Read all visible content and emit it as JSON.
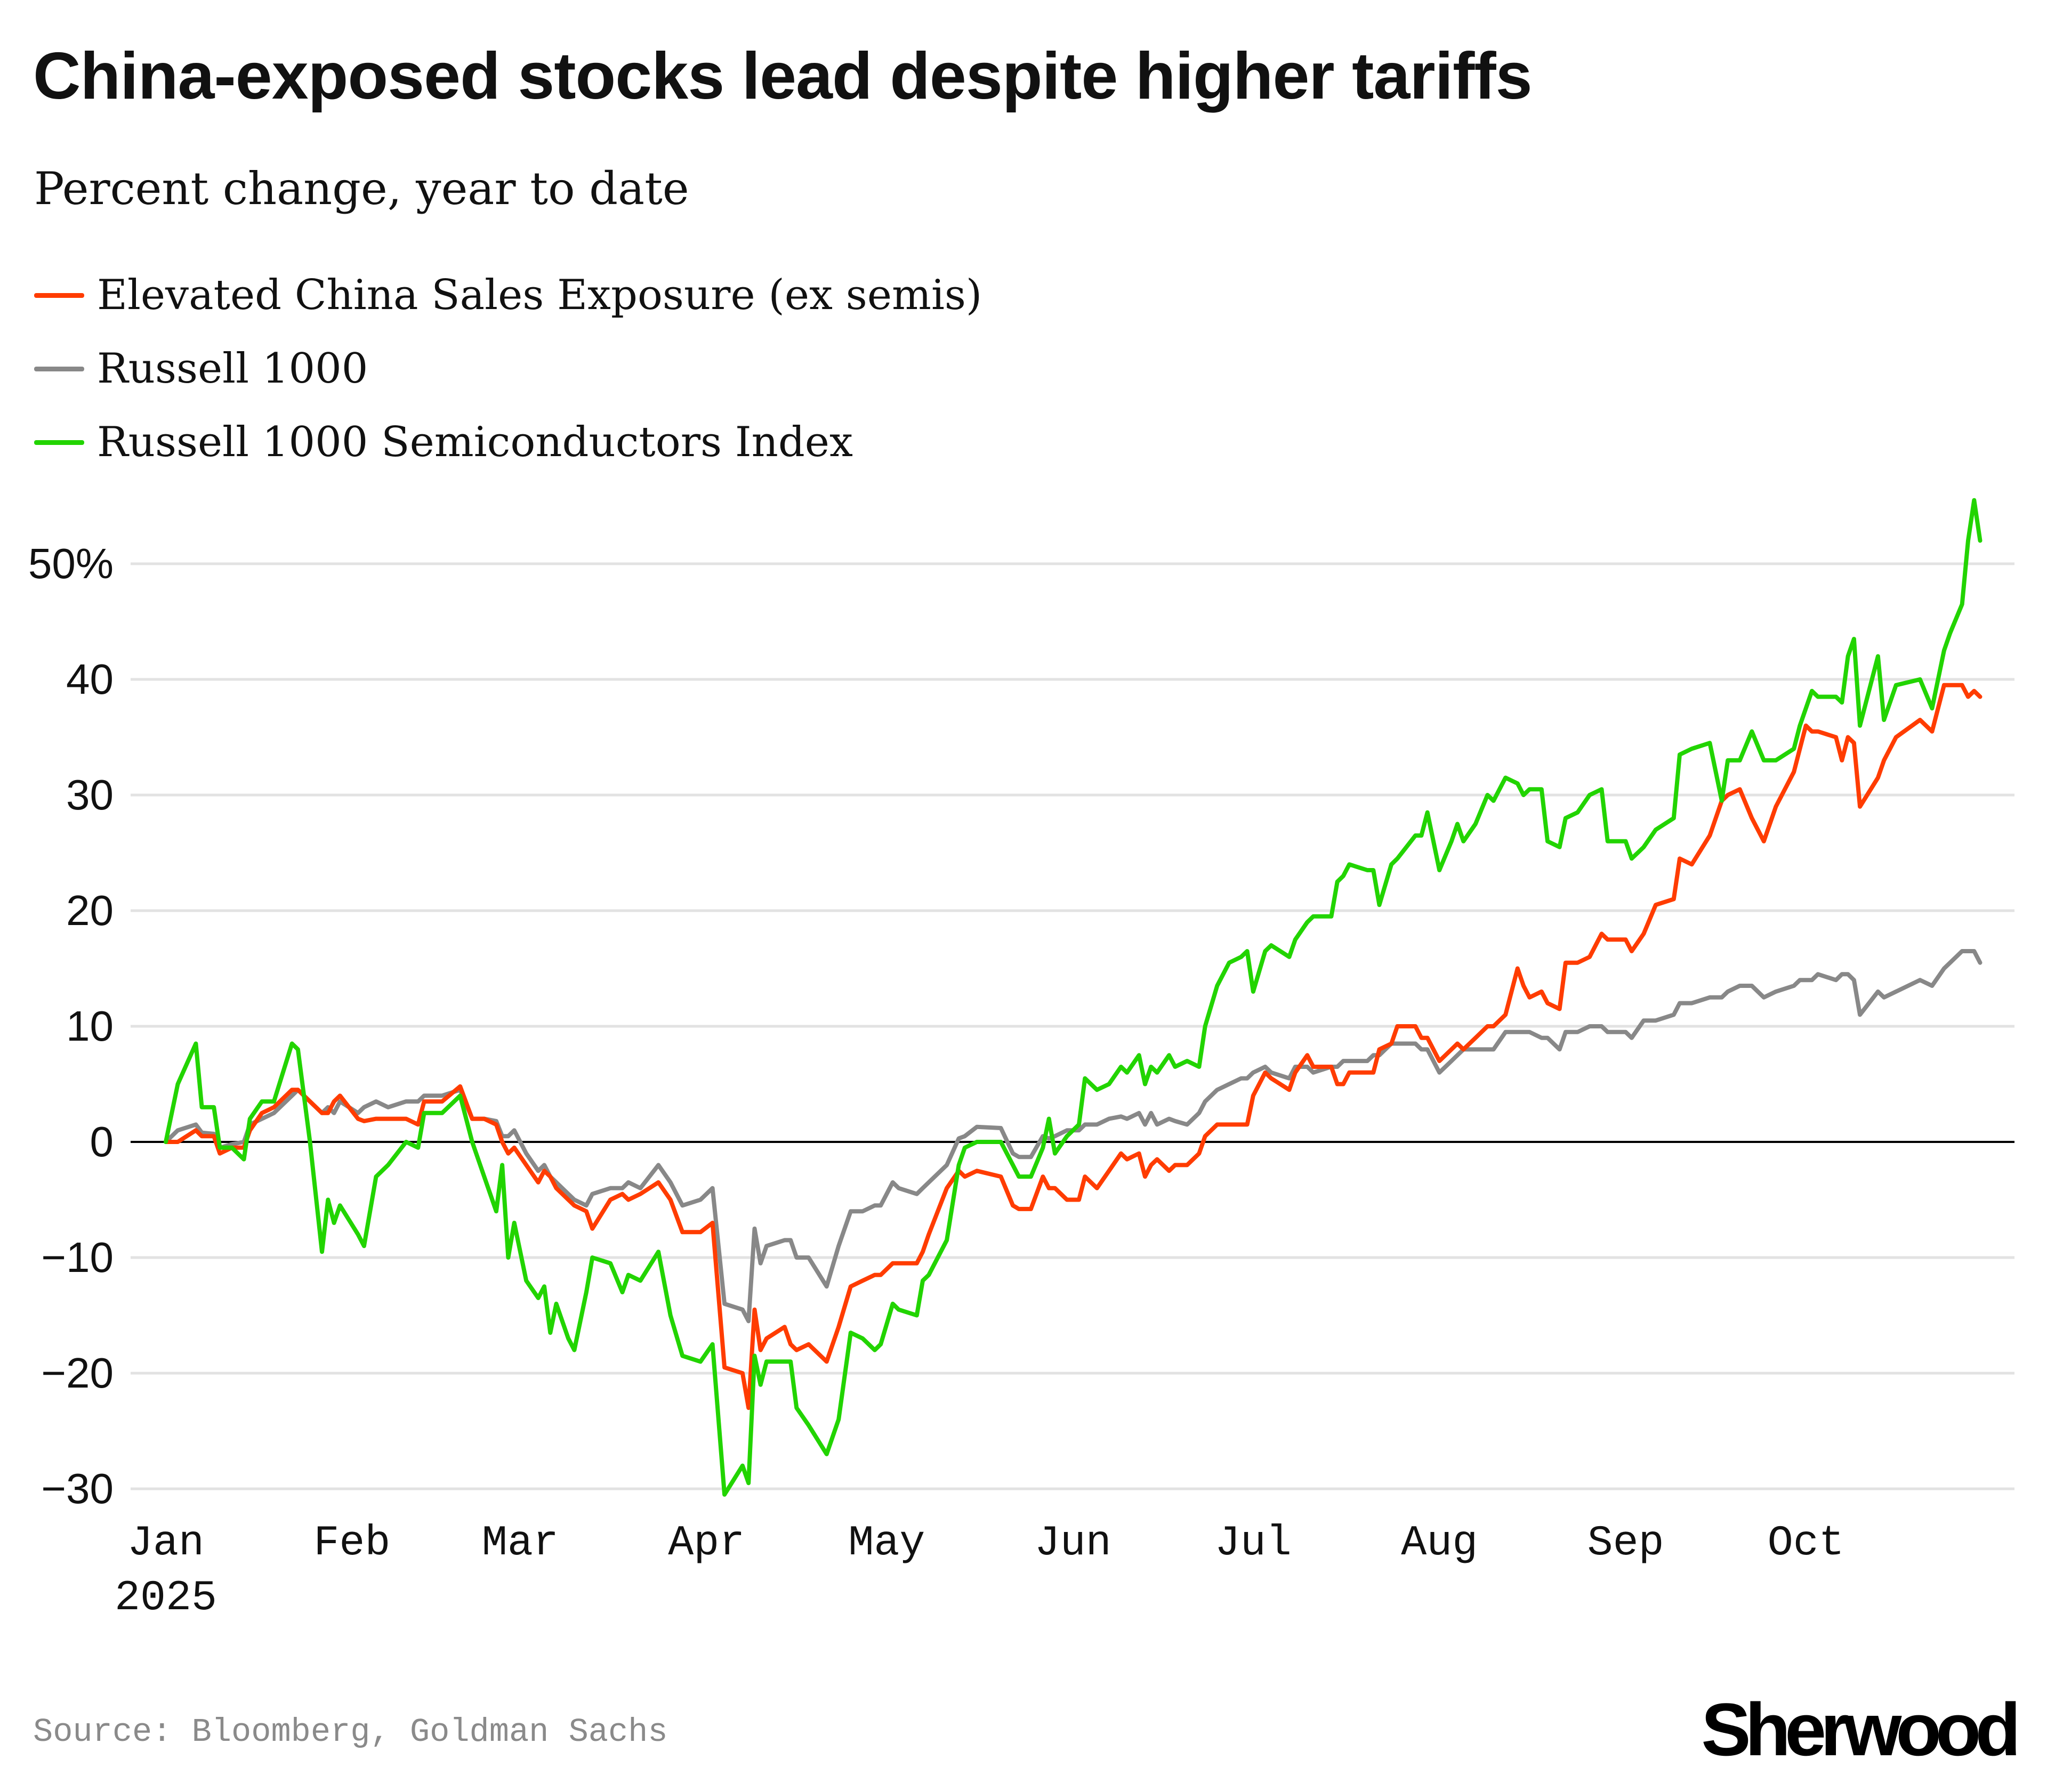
{
  "title": "China-exposed stocks lead despite higher tariffs",
  "subtitle": "Percent change, year to date",
  "source": "Source: Bloomberg, Goldman Sachs",
  "logo": "Sherwood",
  "chart_data": {
    "type": "line",
    "title": "China-exposed stocks lead despite higher tariffs",
    "subtitle": "Percent change, year to date",
    "ylim": [
      -30,
      55
    ],
    "yticks": [
      -30,
      -20,
      -10,
      0,
      10,
      20,
      30,
      40,
      50
    ],
    "ytick_labels": [
      "−30",
      "−20",
      "−10",
      "0",
      "10",
      "20",
      "30",
      "40",
      "50%"
    ],
    "xticks": [
      "2025-01-01",
      "2025-02-01",
      "2025-03-01",
      "2025-04-01",
      "2025-05-01",
      "2025-06-01",
      "2025-07-01",
      "2025-08-01",
      "2025-09-01",
      "2025-10-01"
    ],
    "xtick_labels": [
      "Jan",
      "Feb",
      "Mar",
      "Apr",
      "May",
      "Jun",
      "Jul",
      "Aug",
      "Sep",
      "Oct"
    ],
    "xtick_year": "2025",
    "grid": true,
    "legend_placement": "top-left",
    "x": [
      "2025-01-01",
      "2025-01-03",
      "2025-01-06",
      "2025-01-07",
      "2025-01-09",
      "2025-01-10",
      "2025-01-12",
      "2025-01-14",
      "2025-01-15",
      "2025-01-17",
      "2025-01-19",
      "2025-01-22",
      "2025-01-23",
      "2025-01-25",
      "2025-01-27",
      "2025-01-28",
      "2025-01-29",
      "2025-01-30",
      "2025-02-02",
      "2025-02-03",
      "2025-02-05",
      "2025-02-07",
      "2025-02-10",
      "2025-02-12",
      "2025-02-13",
      "2025-02-16",
      "2025-02-19",
      "2025-02-21",
      "2025-02-23",
      "2025-02-25",
      "2025-02-26",
      "2025-02-27",
      "2025-02-28",
      "2025-03-02",
      "2025-03-04",
      "2025-03-05",
      "2025-03-06",
      "2025-03-07",
      "2025-03-09",
      "2025-03-10",
      "2025-03-12",
      "2025-03-13",
      "2025-03-16",
      "2025-03-18",
      "2025-03-19",
      "2025-03-21",
      "2025-03-24",
      "2025-03-26",
      "2025-03-28",
      "2025-03-31",
      "2025-04-02",
      "2025-04-04",
      "2025-04-07",
      "2025-04-08",
      "2025-04-09",
      "2025-04-10",
      "2025-04-11",
      "2025-04-14",
      "2025-04-15",
      "2025-04-16",
      "2025-04-18",
      "2025-04-21",
      "2025-04-23",
      "2025-04-25",
      "2025-04-27",
      "2025-04-29",
      "2025-04-30",
      "2025-05-02",
      "2025-05-03",
      "2025-05-06",
      "2025-05-07",
      "2025-05-08",
      "2025-05-11",
      "2025-05-13",
      "2025-05-14",
      "2025-05-16",
      "2025-05-20",
      "2025-05-22",
      "2025-05-23",
      "2025-05-25",
      "2025-05-27",
      "2025-05-28",
      "2025-05-29",
      "2025-05-31",
      "2025-06-02",
      "2025-06-03",
      "2025-06-05",
      "2025-06-07",
      "2025-06-09",
      "2025-06-10",
      "2025-06-12",
      "2025-06-13",
      "2025-06-14",
      "2025-06-15",
      "2025-06-17",
      "2025-06-18",
      "2025-06-20",
      "2025-06-22",
      "2025-06-23",
      "2025-06-25",
      "2025-06-27",
      "2025-06-29",
      "2025-06-30",
      "2025-07-01",
      "2025-07-03",
      "2025-07-04",
      "2025-07-07",
      "2025-07-08",
      "2025-07-10",
      "2025-07-11",
      "2025-07-14",
      "2025-07-15",
      "2025-07-16",
      "2025-07-17",
      "2025-07-20",
      "2025-07-21",
      "2025-07-22",
      "2025-07-24",
      "2025-07-25",
      "2025-07-28",
      "2025-07-29",
      "2025-07-30",
      "2025-08-01",
      "2025-08-03",
      "2025-08-04",
      "2025-08-05",
      "2025-08-07",
      "2025-08-09",
      "2025-08-10",
      "2025-08-12",
      "2025-08-14",
      "2025-08-15",
      "2025-08-16",
      "2025-08-18",
      "2025-08-19",
      "2025-08-21",
      "2025-08-22",
      "2025-08-24",
      "2025-08-26",
      "2025-08-28",
      "2025-08-29",
      "2025-09-01",
      "2025-09-02",
      "2025-09-04",
      "2025-09-06",
      "2025-09-09",
      "2025-09-10",
      "2025-09-12",
      "2025-09-15",
      "2025-09-17",
      "2025-09-18",
      "2025-09-20",
      "2025-09-22",
      "2025-09-24",
      "2025-09-26",
      "2025-09-29",
      "2025-09-30",
      "2025-10-01",
      "2025-10-02",
      "2025-10-03",
      "2025-10-06",
      "2025-10-07",
      "2025-10-08",
      "2025-10-09",
      "2025-10-10",
      "2025-10-13",
      "2025-10-14",
      "2025-10-16",
      "2025-10-20",
      "2025-10-22",
      "2025-10-24",
      "2025-10-25",
      "2025-10-27",
      "2025-10-28",
      "2025-10-29",
      "2025-10-30"
    ],
    "series": [
      {
        "name": "Elevated China Sales Exposure (ex semis)",
        "color": "#ff3c00",
        "values": [
          0,
          0,
          1,
          0.5,
          0.5,
          -1,
          -0.5,
          -0.5,
          1,
          2.5,
          3,
          4.5,
          4.5,
          3.5,
          2.5,
          2.5,
          3.5,
          4,
          2,
          1.8,
          2,
          2,
          2,
          1.5,
          3.5,
          3.5,
          4.8,
          2,
          2,
          1.5,
          0,
          -1,
          -0.5,
          -2,
          -3.5,
          -2.5,
          -3,
          -4,
          -5,
          -5.5,
          -6,
          -7.5,
          -5,
          -4.5,
          -5,
          -4.5,
          -3.5,
          -5,
          -7.8,
          -7.8,
          -7,
          -19.5,
          -20,
          -23,
          -14.5,
          -18,
          -17,
          -16,
          -17.5,
          -18,
          -17.5,
          -19,
          -16,
          -12.5,
          -12,
          -11.5,
          -11.5,
          -10.5,
          -10.5,
          -10.5,
          -9.5,
          -8,
          -4,
          -2.5,
          -3,
          -2.5,
          -3,
          -5.5,
          -5.8,
          -5.8,
          -3,
          -4,
          -4,
          -5,
          -5,
          -3,
          -4,
          -2.5,
          -1,
          -1.5,
          -1,
          -3,
          -2,
          -1.5,
          -2.5,
          -2,
          -2,
          -1,
          0.5,
          1.5,
          1.5,
          1.5,
          1.5,
          4,
          6,
          5.5,
          4.5,
          6,
          7.5,
          6.5,
          6.5,
          5,
          5,
          6,
          6,
          6,
          8,
          8.5,
          10,
          10,
          9,
          9,
          7,
          8,
          8.5,
          8,
          9,
          10,
          10,
          11,
          15,
          13.5,
          12.5,
          13,
          12,
          11.5,
          15.5,
          15.5,
          16,
          18,
          17.5,
          17.5,
          16.5,
          18,
          20.5,
          21,
          24.5,
          24,
          26.5,
          29.5,
          30,
          30.5,
          28,
          26,
          29,
          32,
          34,
          36,
          35.5,
          35.5,
          35,
          33,
          35,
          34.5,
          29,
          31.5,
          33,
          35,
          36.5,
          35.5,
          39.5,
          39.5,
          39.5,
          38.5,
          39,
          38.5
        ]
      },
      {
        "name": "Russell 1000",
        "color": "#888888",
        "values": [
          0,
          1,
          1.5,
          0.8,
          0.7,
          -0.5,
          -0.2,
          0,
          1.5,
          2,
          2.5,
          4,
          4.5,
          3.5,
          2.5,
          3,
          2.5,
          3.5,
          2.5,
          3,
          3.5,
          3,
          3.5,
          3.5,
          4,
          4,
          4.5,
          2,
          2,
          1.8,
          0.5,
          0.5,
          1,
          -1,
          -2.5,
          -2,
          -3,
          -3.5,
          -4.5,
          -5,
          -5.5,
          -4.5,
          -4,
          -4,
          -3.5,
          -4,
          -2,
          -3.5,
          -5.5,
          -5,
          -4,
          -14,
          -14.5,
          -15.5,
          -7.5,
          -10.5,
          -9,
          -8.5,
          -8.5,
          -10,
          -10,
          -12.5,
          -9,
          -6,
          -6,
          -5.5,
          -5.5,
          -3.5,
          -4,
          -4.5,
          -4,
          -3.5,
          -2,
          0.3,
          0.5,
          1.3,
          1.2,
          -1,
          -1.3,
          -1.3,
          0.5,
          0.3,
          0.5,
          1,
          1,
          1.5,
          1.5,
          2,
          2.2,
          2,
          2.5,
          1.5,
          2.5,
          1.5,
          2,
          1.8,
          1.5,
          2.5,
          3.5,
          4.5,
          5,
          5.5,
          5.5,
          6,
          6.5,
          6,
          5.5,
          6.5,
          6.5,
          6,
          6.5,
          6.5,
          7,
          7,
          7,
          7.5,
          7.5,
          8.5,
          8.5,
          8.5,
          8,
          8,
          6,
          7,
          7.5,
          8,
          8,
          8,
          8,
          9.5,
          9.5,
          9.5,
          9.5,
          9,
          9,
          8,
          9.5,
          9.5,
          10,
          10,
          9.5,
          9.5,
          9,
          10.5,
          10.5,
          11,
          12,
          12,
          12.5,
          12.5,
          13,
          13.5,
          13.5,
          12.5,
          13,
          13.5,
          14,
          14,
          14,
          14.5,
          14,
          14.5,
          14.5,
          14,
          11,
          13,
          12.5,
          13,
          14,
          13.5,
          15,
          15.5,
          16.5,
          16.5,
          16.5,
          15.5
        ]
      },
      {
        "name": "Russell 1000 Semiconductors Index",
        "color": "#22d400",
        "values": [
          0,
          5,
          8.5,
          3,
          3,
          -0.5,
          -0.5,
          -1.5,
          2,
          3.5,
          3.5,
          8.5,
          8,
          0,
          -9.5,
          -5,
          -7,
          -5.5,
          -8,
          -9,
          -3,
          -2,
          0,
          -0.5,
          2.5,
          2.5,
          4,
          0,
          -3,
          -6,
          -2,
          -10,
          -7,
          -12,
          -13.5,
          -12.5,
          -16.5,
          -14,
          -17,
          -18,
          -13,
          -10,
          -10.5,
          -13,
          -11.5,
          -12,
          -9.5,
          -15,
          -18.5,
          -19,
          -17.5,
          -30.5,
          -28,
          -29.5,
          -18.5,
          -21,
          -19,
          -19,
          -19,
          -23,
          -24.5,
          -27,
          -24,
          -16.5,
          -17,
          -18,
          -17.5,
          -14,
          -14.5,
          -15,
          -12,
          -11.5,
          -8.5,
          -2,
          -0.5,
          0,
          0,
          -2,
          -3,
          -3,
          -0.5,
          2,
          -1,
          0.5,
          1.5,
          5.5,
          4.5,
          5,
          6.5,
          6,
          7.5,
          5,
          6.5,
          6,
          7.5,
          6.5,
          7,
          6.5,
          10,
          13.5,
          15.5,
          16,
          16.5,
          13,
          16.5,
          17,
          16,
          17.5,
          19,
          19.5,
          19.5,
          22.5,
          23,
          24,
          23.5,
          23.5,
          20.5,
          24,
          24.5,
          26.5,
          26.5,
          28.5,
          23.5,
          26,
          27.5,
          26,
          27.5,
          30,
          29.5,
          31.5,
          31,
          30,
          30.5,
          30.5,
          26,
          25.5,
          28,
          28.5,
          30,
          30.5,
          26,
          26,
          24.5,
          25.5,
          27,
          28,
          33.5,
          34,
          34.5,
          29.5,
          33,
          33,
          35.5,
          33,
          33,
          34,
          36,
          37.5,
          39,
          38.5,
          38.5,
          38,
          42,
          43.5,
          36,
          42,
          36.5,
          39.5,
          40,
          37.5,
          42.5,
          44,
          46.5,
          52,
          55.5,
          52
        ]
      }
    ]
  }
}
